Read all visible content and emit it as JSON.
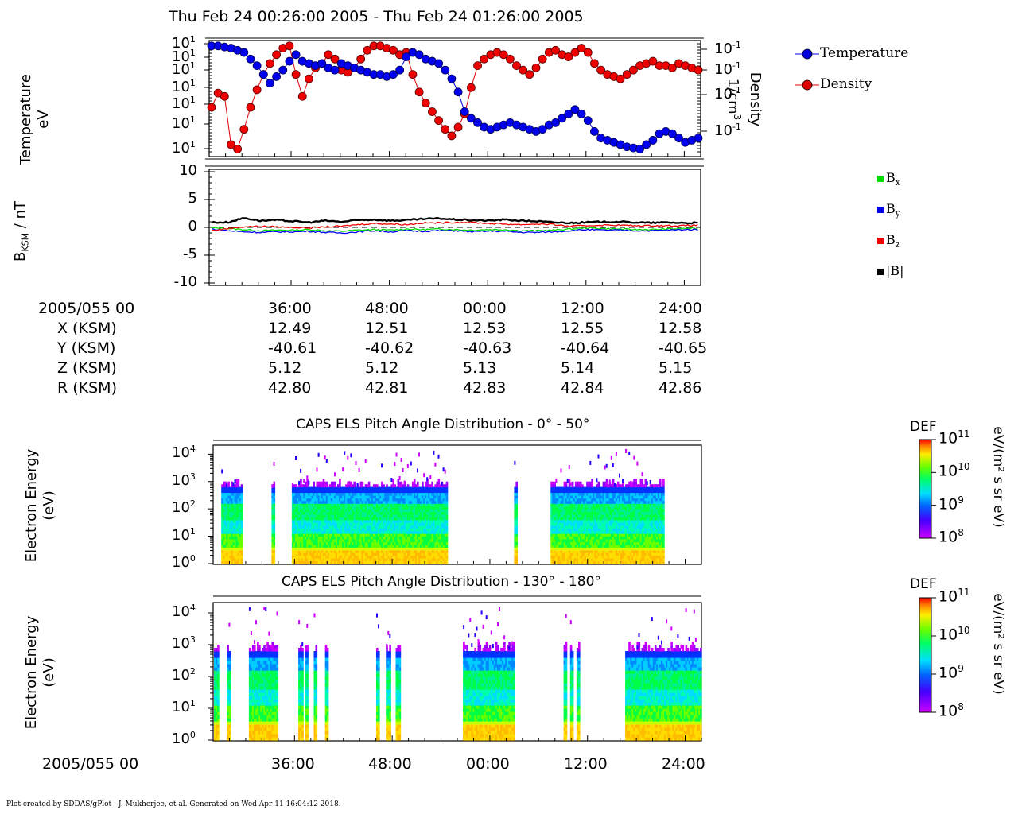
{
  "title": "Thu Feb 24 00:26:00 2005 - Thu Feb 24 01:26:00 2005",
  "footer": "Plot created by SDDAS/gPlot - J. Mukherjee, et al.  Generated on Wed Apr 11 16:04:12 2018.",
  "x_tick_labels": [
    "36:00",
    "48:00",
    "00:00",
    "12:00",
    "24:00"
  ],
  "ephemeris": {
    "date_label": "2005/055 00",
    "rows": [
      {
        "label": "X (KSM)",
        "values": [
          "12.49",
          "12.51",
          "12.53",
          "12.55",
          "12.58"
        ]
      },
      {
        "label": "Y (KSM)",
        "values": [
          "-40.61",
          "-40.62",
          "-40.63",
          "-40.64",
          "-40.65"
        ]
      },
      {
        "label": "Z (KSM)",
        "values": [
          "5.12",
          "5.12",
          "5.13",
          "5.14",
          "5.15"
        ]
      },
      {
        "label": "R (KSM)",
        "values": [
          "42.80",
          "42.81",
          "42.83",
          "42.84",
          "42.86"
        ]
      }
    ]
  },
  "bottom_date_label": "2005/055 00",
  "panel1": {
    "ylabel_line1": "Temperature",
    "ylabel_line2": "eV",
    "left_tick_labels": [
      "10",
      "10",
      "10",
      "10",
      "10",
      "10",
      "10"
    ],
    "left_tick_exp": "1",
    "right_tick_labels": [
      "10",
      "10",
      "10",
      "10"
    ],
    "right_tick_exp": "-1",
    "right_label_line1": "Density",
    "right_label_line2": "1/cm",
    "right_label_exp": "3",
    "legend": [
      {
        "name": "Temperature",
        "color": "#0000dd"
      },
      {
        "name": "Density",
        "color": "#dd0000"
      }
    ]
  },
  "panel2": {
    "ylabel": "B",
    "ylabel_sub": "KSM",
    "ylabel_tail": " / nT",
    "y_tick_labels": [
      "10",
      "5",
      "0",
      "-5",
      "-10"
    ],
    "legend": [
      {
        "name": "B",
        "sub": "x",
        "color": "#00dd00"
      },
      {
        "name": "B",
        "sub": "y",
        "color": "#0000ee"
      },
      {
        "name": "B",
        "sub": "z",
        "color": "#ee0000"
      },
      {
        "name": "|B|",
        "sub": "",
        "color": "#000000"
      }
    ]
  },
  "panel3": {
    "title": "CAPS ELS Pitch Angle Distribution - 0° - 50°",
    "ylabel_line1": "Electron Energy",
    "ylabel_line2": "(eV)",
    "colorbar_title": "DEF",
    "colorbar_unit": "eV/(m² s sr eV)",
    "colorbar_ticks": [
      "10",
      "10",
      "10",
      "10"
    ],
    "colorbar_exps": [
      "11",
      "10",
      "9",
      "8"
    ]
  },
  "panel4": {
    "title": "CAPS ELS Pitch Angle Distribution - 130° - 180°",
    "ylabel_line1": "Electron Energy",
    "ylabel_line2": "(eV)",
    "colorbar_title": "DEF",
    "colorbar_unit": "eV/(m² s sr eV)",
    "colorbar_ticks": [
      "10",
      "10",
      "10",
      "10"
    ],
    "colorbar_exps": [
      "11",
      "10",
      "9",
      "8"
    ]
  },
  "energy_tick_labels": [
    "10",
    "10",
    "10",
    "10",
    "10"
  ],
  "energy_tick_exps": [
    "4",
    "3",
    "2",
    "1",
    "0"
  ],
  "colors": {
    "temperature": "#0000dd",
    "density": "#dd0000",
    "bx": "#00dd00",
    "by": "#0000ee",
    "bz": "#ee0000",
    "bmag": "#000000"
  },
  "chart_data": [
    {
      "type": "line",
      "panel": "plasma moments",
      "x_range": [
        "00:26:00",
        "01:26:00"
      ],
      "x_ticks": [
        "00:36:00",
        "00:48:00",
        "01:00:00",
        "01:12:00",
        "01:24:00"
      ],
      "left_axis": "Temperature eV",
      "right_axis": "Density 1/cm3",
      "x_minutes": [
        0.0,
        0.8,
        1.6,
        2.4,
        3.2,
        4.0,
        4.8,
        5.6,
        6.4,
        7.2,
        8.0,
        8.8,
        9.6,
        10.4,
        11.2,
        12.0,
        12.8,
        13.6,
        14.4,
        15.2,
        16.0,
        16.8,
        17.6,
        18.4,
        19.2,
        20.0,
        20.8,
        21.6,
        22.4,
        23.2,
        24.0,
        24.8,
        25.6,
        26.4,
        27.2,
        28.0,
        28.8,
        29.6,
        30.4,
        31.2,
        32.0,
        32.8,
        33.6,
        34.4,
        35.2,
        36.0,
        36.8,
        37.6,
        38.4,
        39.2,
        40.0,
        40.8,
        41.6,
        42.4,
        43.2,
        44.0,
        44.8,
        45.6,
        46.4,
        47.2,
        48.0,
        48.8,
        49.6,
        50.4,
        51.2,
        52.0,
        52.8,
        53.6,
        54.4,
        55.2,
        56.0,
        56.8,
        57.6,
        58.4,
        59.2,
        60.0
      ],
      "series": [
        {
          "name": "Temperature",
          "axis": "left",
          "relative_level": [
            0.98,
            0.98,
            0.97,
            0.96,
            0.94,
            0.92,
            0.86,
            0.8,
            0.72,
            0.64,
            0.7,
            0.76,
            0.84,
            0.9,
            0.84,
            0.82,
            0.8,
            0.82,
            0.78,
            0.76,
            0.82,
            0.8,
            0.78,
            0.76,
            0.74,
            0.72,
            0.72,
            0.7,
            0.72,
            0.76,
            0.88,
            0.92,
            0.9,
            0.86,
            0.84,
            0.82,
            0.76,
            0.68,
            0.56,
            0.38,
            0.32,
            0.28,
            0.24,
            0.22,
            0.24,
            0.26,
            0.28,
            0.26,
            0.24,
            0.22,
            0.2,
            0.22,
            0.26,
            0.28,
            0.32,
            0.36,
            0.4,
            0.36,
            0.3,
            0.2,
            0.14,
            0.12,
            0.1,
            0.08,
            0.06,
            0.05,
            0.04,
            0.08,
            0.12,
            0.18,
            0.2,
            0.18,
            0.14,
            0.1,
            0.12,
            0.14
          ]
        },
        {
          "name": "Density",
          "axis": "right",
          "relative_level": [
            0.42,
            0.55,
            0.52,
            0.08,
            0.04,
            0.22,
            0.42,
            0.58,
            0.72,
            0.82,
            0.9,
            0.96,
            0.98,
            0.72,
            0.52,
            0.68,
            0.78,
            0.82,
            0.9,
            0.86,
            0.76,
            0.74,
            0.78,
            0.86,
            0.94,
            0.98,
            0.98,
            0.96,
            0.94,
            0.9,
            0.92,
            0.72,
            0.56,
            0.46,
            0.38,
            0.3,
            0.22,
            0.16,
            0.24,
            0.36,
            0.6,
            0.8,
            0.86,
            0.9,
            0.92,
            0.9,
            0.86,
            0.8,
            0.76,
            0.72,
            0.78,
            0.86,
            0.92,
            0.94,
            0.9,
            0.88,
            0.92,
            0.96,
            0.92,
            0.82,
            0.76,
            0.72,
            0.7,
            0.68,
            0.72,
            0.76,
            0.8,
            0.82,
            0.84,
            0.8,
            0.8,
            0.78,
            0.82,
            0.8,
            0.78,
            0.76
          ]
        }
      ]
    },
    {
      "type": "line",
      "panel": "magnetic field",
      "ylabel": "BKSM / nT",
      "ylim": [
        -10,
        10
      ],
      "x_range": [
        "00:26:00",
        "01:26:00"
      ],
      "x_minutes": [
        0,
        2,
        4,
        6,
        8,
        10,
        12,
        14,
        16,
        18,
        20,
        22,
        24,
        26,
        28,
        30,
        32,
        34,
        36,
        38,
        40,
        42,
        44,
        46,
        48,
        50,
        52,
        54,
        56,
        58,
        60
      ],
      "series": [
        {
          "name": "Bx",
          "values": [
            -0.1,
            -0.2,
            -0.4,
            -0.6,
            -0.5,
            -0.5,
            -0.4,
            -0.6,
            -0.7,
            -0.5,
            -0.4,
            -0.5,
            -0.3,
            -0.4,
            -0.3,
            -0.4,
            -0.5,
            -0.4,
            -0.4,
            -0.6,
            -0.6,
            -0.5,
            -0.3,
            -0.1,
            -0.2,
            -0.3,
            -0.4,
            -0.4,
            -0.3,
            -0.2,
            -0.2
          ]
        },
        {
          "name": "By",
          "values": [
            -0.3,
            -0.6,
            -0.8,
            -0.9,
            -0.8,
            -0.8,
            -0.7,
            -0.9,
            -1.0,
            -0.8,
            -0.6,
            -0.8,
            -0.6,
            -0.7,
            -0.6,
            -0.6,
            -0.8,
            -0.7,
            -0.7,
            -0.9,
            -0.9,
            -0.8,
            -0.6,
            -0.4,
            -0.5,
            -0.5,
            -0.6,
            -0.6,
            -0.5,
            -0.4,
            -0.4
          ]
        },
        {
          "name": "Bz",
          "values": [
            -0.6,
            -0.2,
            0.1,
            0.2,
            0.1,
            0.0,
            -0.1,
            0.1,
            0.2,
            0.5,
            0.7,
            0.6,
            0.5,
            0.8,
            0.8,
            0.9,
            0.9,
            0.7,
            0.6,
            0.5,
            0.6,
            0.5,
            0.2,
            0.3,
            0.4,
            0.4,
            0.3,
            0.3,
            0.3,
            0.3,
            0.4
          ]
        },
        {
          "name": "|B|",
          "values": [
            0.9,
            0.9,
            1.7,
            1.2,
            1.3,
            1.1,
            0.9,
            1.2,
            1.0,
            1.3,
            1.4,
            1.2,
            1.3,
            1.5,
            1.6,
            1.4,
            1.3,
            1.2,
            1.4,
            1.2,
            1.1,
            0.9,
            0.8,
            0.9,
            1.0,
            1.0,
            0.9,
            0.8,
            0.9,
            0.8,
            0.8
          ]
        }
      ]
    },
    {
      "type": "heatmap",
      "panel": "CAPS ELS Pitch Angle Distribution - 0° - 50°",
      "ylabel": "Electron Energy (eV)",
      "ylim_log10": [
        0,
        4.3
      ],
      "colorbar": {
        "label": "DEF",
        "unit": "eV/(m² s sr eV)",
        "log10_range": [
          8,
          11
        ]
      },
      "x_range": [
        "00:26:00",
        "01:26:00"
      ],
      "data_intervals_minutes": [
        [
          0.9,
          3.4
        ],
        [
          7.1,
          7.4
        ],
        [
          9.6,
          28.6
        ],
        [
          37.0,
          37.3
        ],
        [
          41.5,
          55.4
        ]
      ]
    },
    {
      "type": "heatmap",
      "panel": "CAPS ELS Pitch Angle Distribution - 130° - 180°",
      "ylabel": "Electron Energy (eV)",
      "ylim_log10": [
        0,
        4.3
      ],
      "colorbar": {
        "label": "DEF",
        "unit": "eV/(m² s sr eV)",
        "log10_range": [
          8,
          11
        ]
      },
      "x_range": [
        "00:26:00",
        "01:26:00"
      ],
      "data_intervals_minutes": [
        [
          0.0,
          0.6
        ],
        [
          1.6,
          2.0
        ],
        [
          4.3,
          7.9
        ],
        [
          10.4,
          10.9
        ],
        [
          11.2,
          11.5
        ],
        [
          12.3,
          12.7
        ],
        [
          13.7,
          14.0
        ],
        [
          20.0,
          20.4
        ],
        [
          21.2,
          21.6
        ],
        [
          22.4,
          22.8
        ],
        [
          30.7,
          37.0
        ],
        [
          43.1,
          43.5
        ],
        [
          43.9,
          44.3
        ],
        [
          44.7,
          45.1
        ],
        [
          50.7,
          60.0
        ]
      ]
    }
  ]
}
